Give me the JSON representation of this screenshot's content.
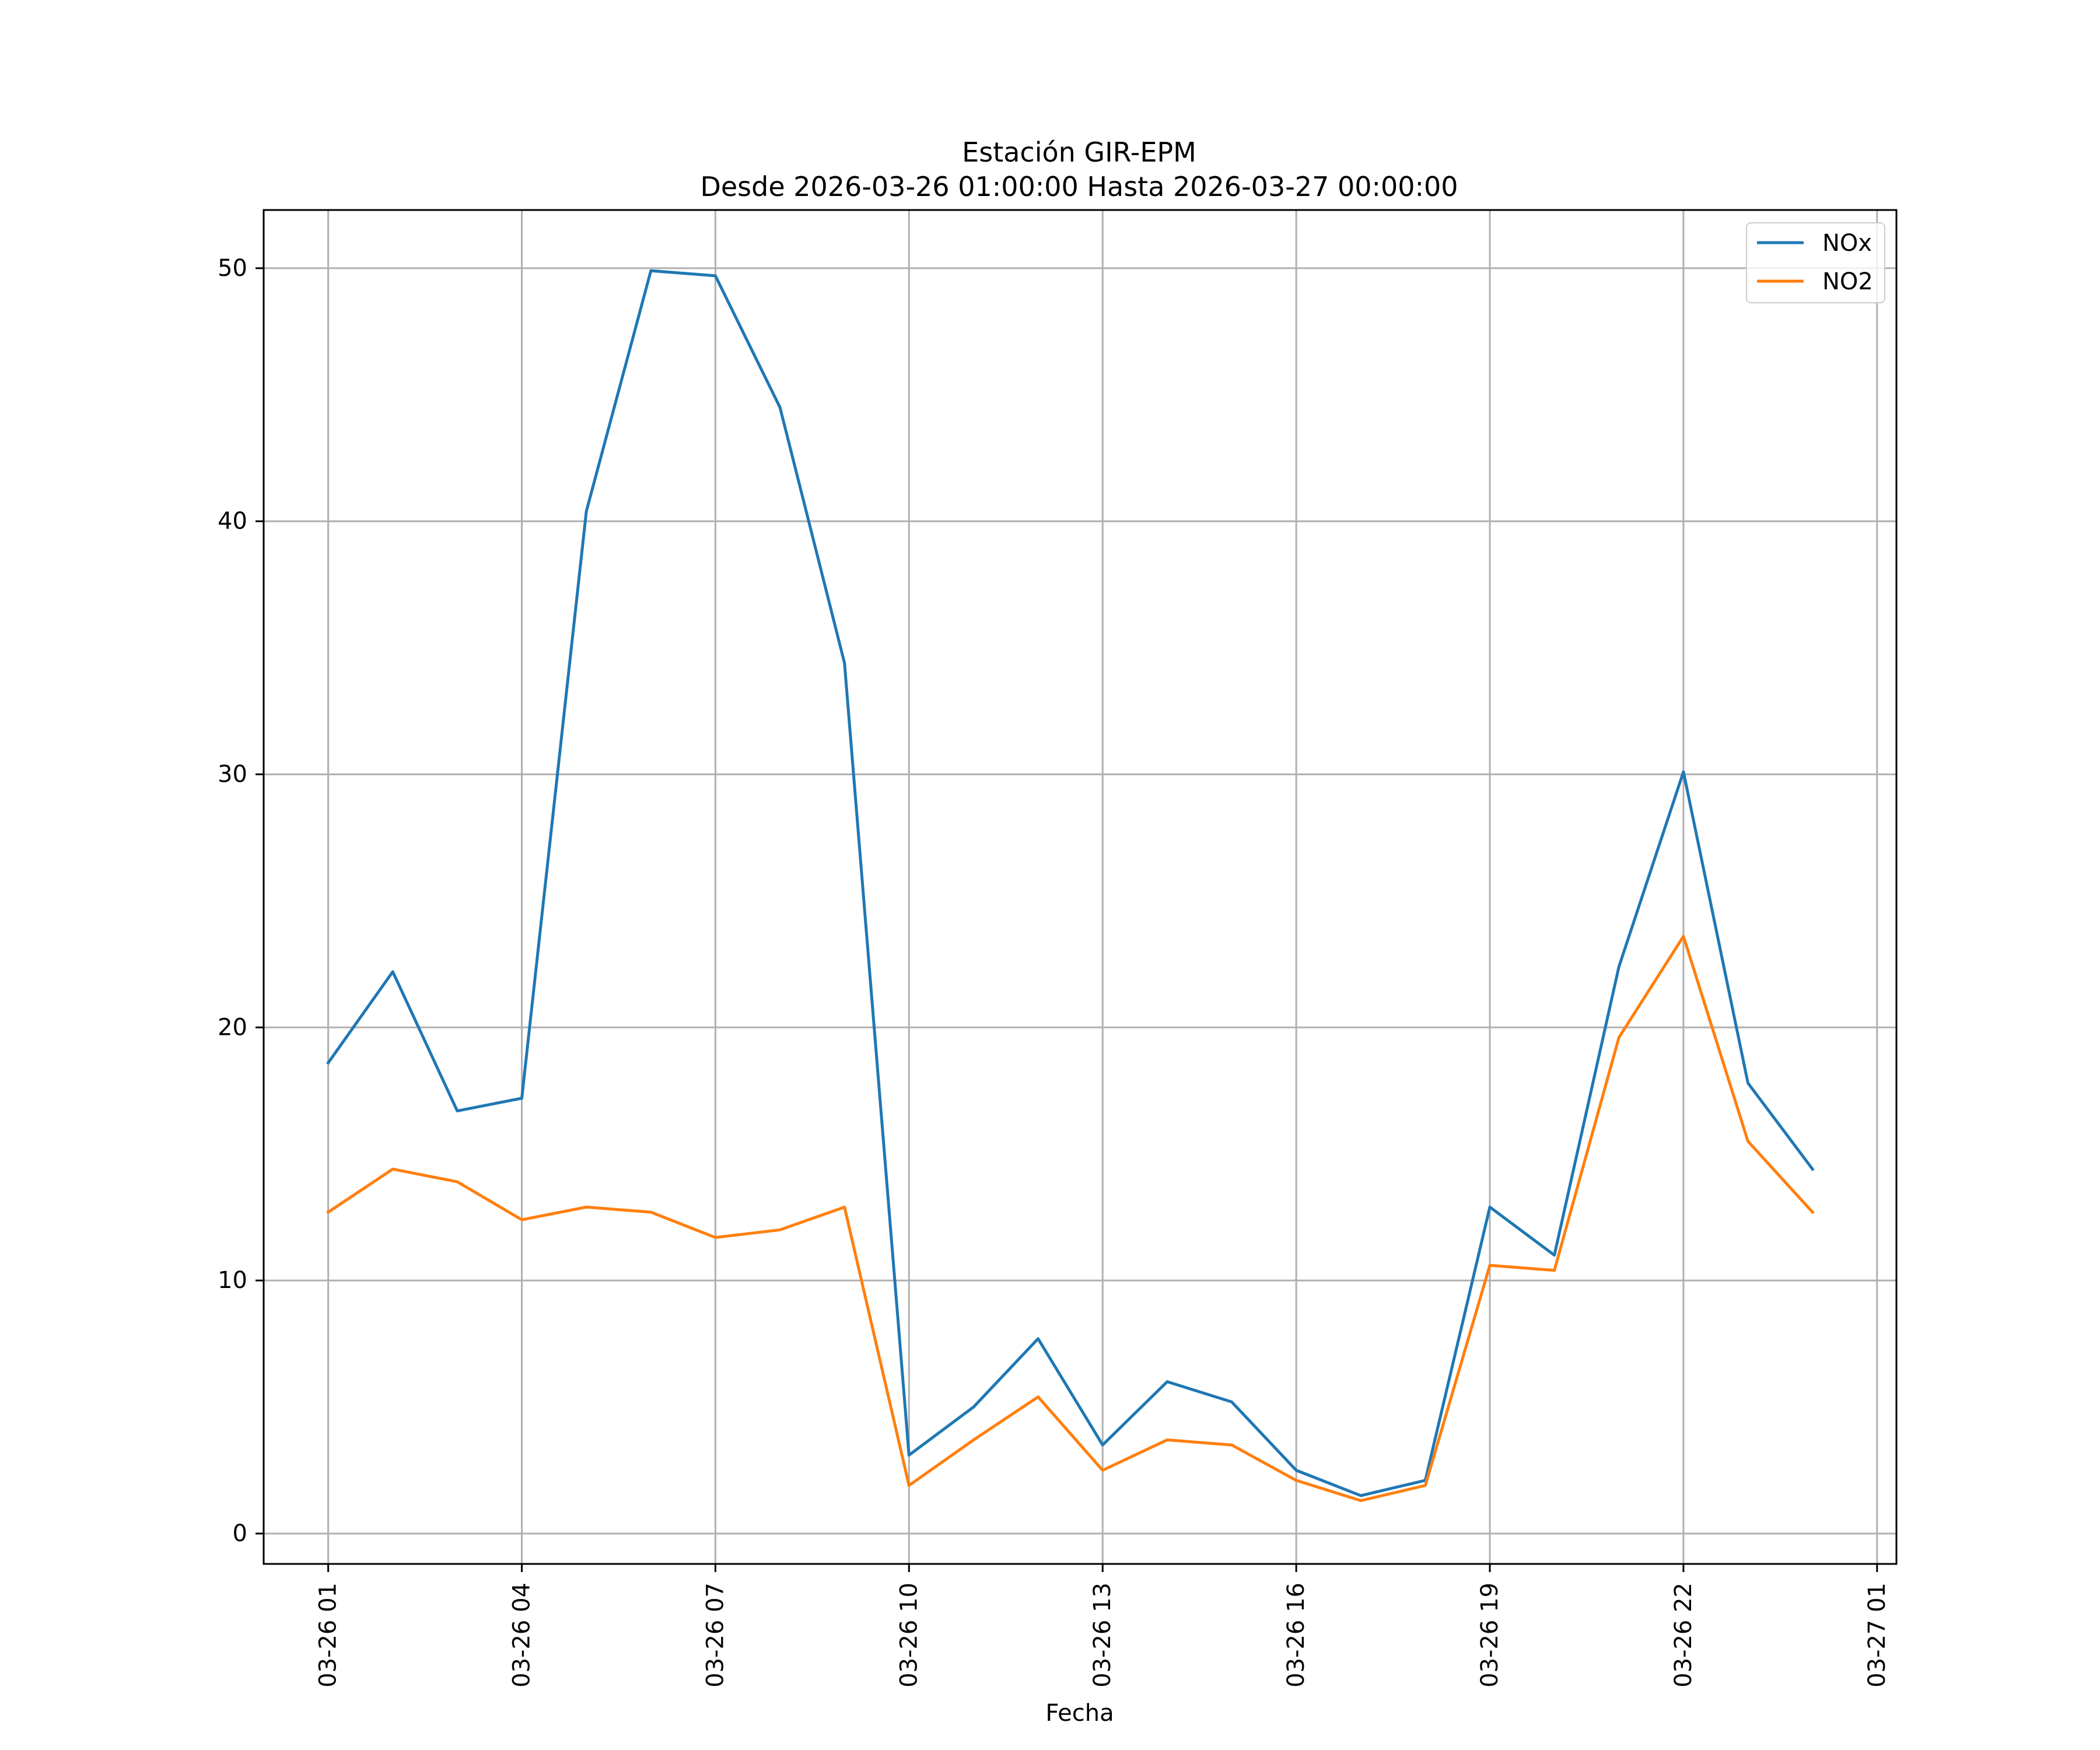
{
  "chart_data": {
    "type": "line",
    "title": "Estación GIR-EPM",
    "subtitle": "Desde 2026-03-26 01:00:00 Hasta 2026-03-27 00:00:00",
    "xlabel": "Fecha",
    "ylabel": "",
    "x": [
      "2026-03-26 01:00",
      "2026-03-26 02:00",
      "2026-03-26 03:00",
      "2026-03-26 04:00",
      "2026-03-26 05:00",
      "2026-03-26 06:00",
      "2026-03-26 07:00",
      "2026-03-26 08:00",
      "2026-03-26 09:00",
      "2026-03-26 10:00",
      "2026-03-26 11:00",
      "2026-03-26 12:00",
      "2026-03-26 13:00",
      "2026-03-26 14:00",
      "2026-03-26 15:00",
      "2026-03-26 16:00",
      "2026-03-26 17:00",
      "2026-03-26 18:00",
      "2026-03-26 19:00",
      "2026-03-26 20:00",
      "2026-03-26 21:00",
      "2026-03-26 22:00",
      "2026-03-26 23:00",
      "2026-03-27 00:00"
    ],
    "xlim": [
      "2026-03-26 00:00",
      "2026-03-27 01:18"
    ],
    "ylim": [
      -1.2,
      52.3
    ],
    "x_ticks": [
      {
        "value": "2026-03-26 01:00",
        "label": "03-26 01"
      },
      {
        "value": "2026-03-26 04:00",
        "label": "03-26 04"
      },
      {
        "value": "2026-03-26 07:00",
        "label": "03-26 07"
      },
      {
        "value": "2026-03-26 10:00",
        "label": "03-26 10"
      },
      {
        "value": "2026-03-26 13:00",
        "label": "03-26 13"
      },
      {
        "value": "2026-03-26 16:00",
        "label": "03-26 16"
      },
      {
        "value": "2026-03-26 19:00",
        "label": "03-26 19"
      },
      {
        "value": "2026-03-26 22:00",
        "label": "03-26 22"
      },
      {
        "value": "2026-03-27 01:00",
        "label": "03-27 01"
      }
    ],
    "y_ticks": [
      {
        "value": 0,
        "label": "0"
      },
      {
        "value": 10,
        "label": "10"
      },
      {
        "value": 20,
        "label": "20"
      },
      {
        "value": 30,
        "label": "30"
      },
      {
        "value": 40,
        "label": "40"
      },
      {
        "value": 50,
        "label": "50"
      }
    ],
    "grid": true,
    "legend_position": "top-right",
    "series": [
      {
        "name": "NOx",
        "color": "#1f77b4",
        "values": [
          18.6,
          22.2,
          16.7,
          17.2,
          40.4,
          49.9,
          49.7,
          44.5,
          34.4,
          3.1,
          5.0,
          7.7,
          3.5,
          6.0,
          5.2,
          2.5,
          1.5,
          2.1,
          12.9,
          11.0,
          22.4,
          30.1,
          17.8,
          14.4
        ]
      },
      {
        "name": "NO2",
        "color": "#ff7f0e",
        "values": [
          12.7,
          14.4,
          13.9,
          12.4,
          12.9,
          12.7,
          11.7,
          12.0,
          12.9,
          1.9,
          3.7,
          5.4,
          2.5,
          3.7,
          3.5,
          2.1,
          1.3,
          1.9,
          10.6,
          10.4,
          19.6,
          23.6,
          15.5,
          12.7
        ]
      }
    ]
  }
}
